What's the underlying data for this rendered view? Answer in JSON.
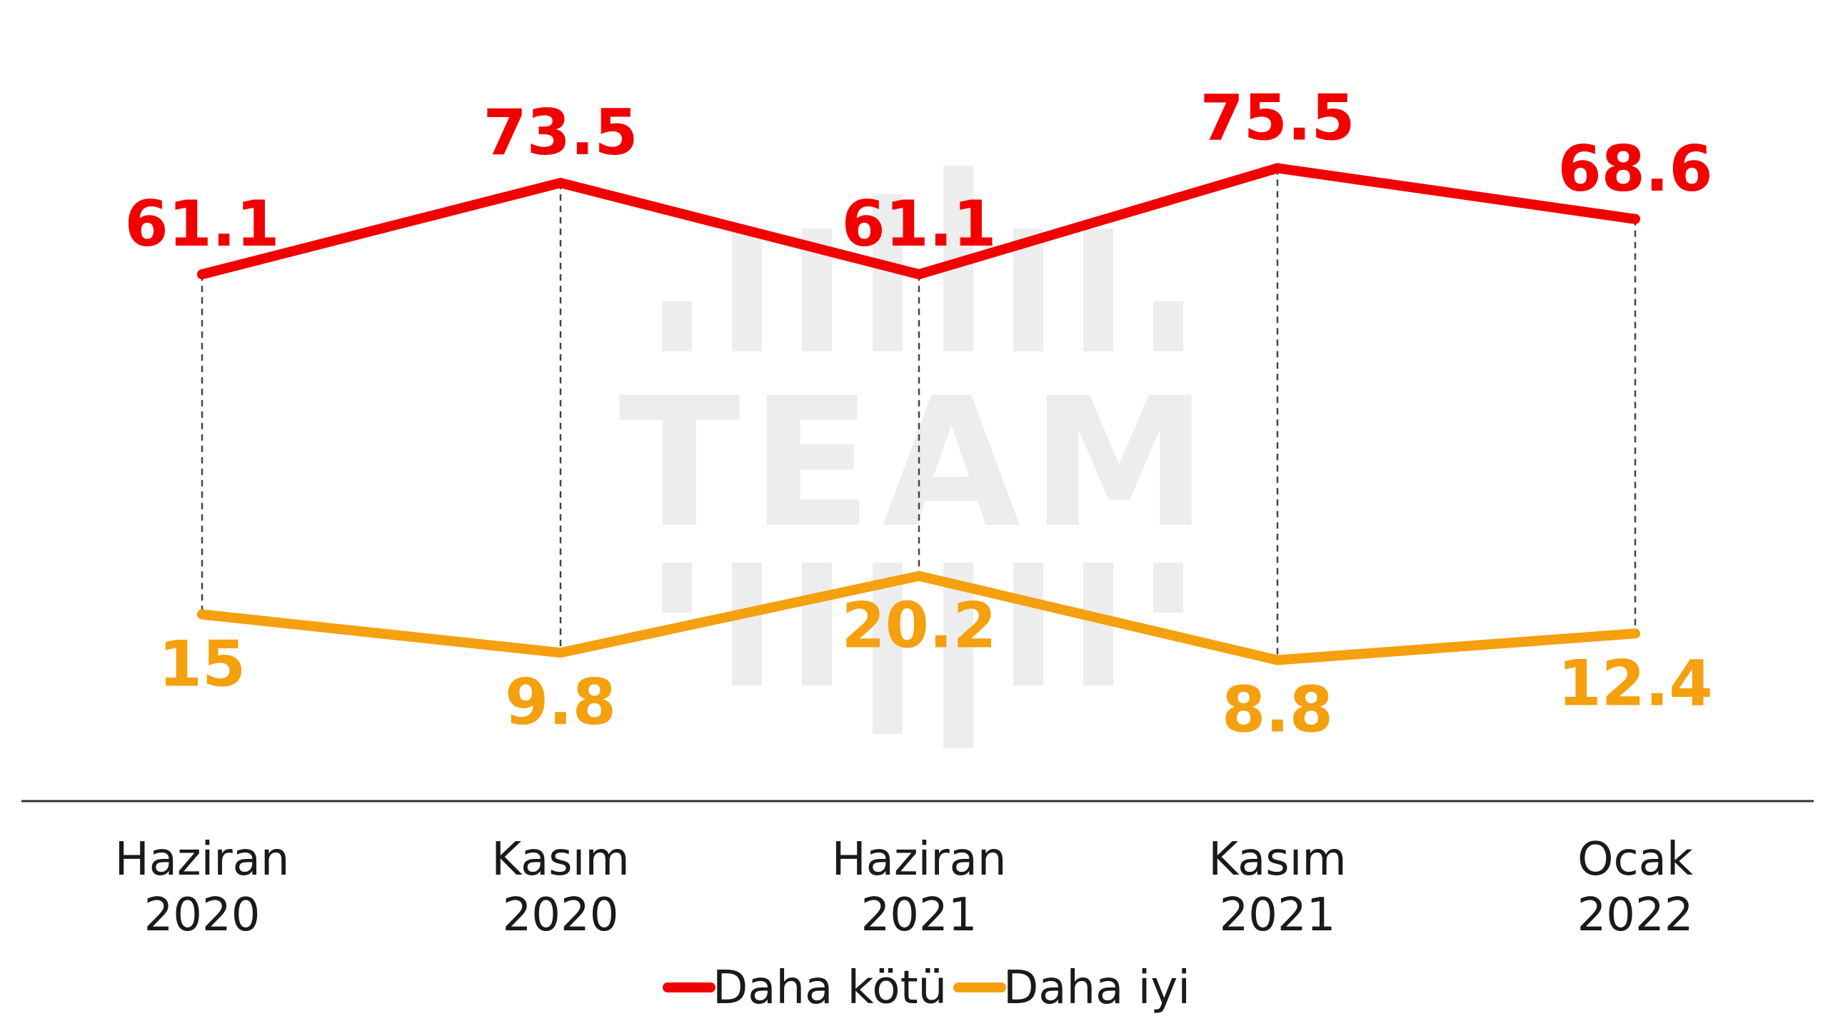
{
  "watermark": {
    "text": "TEAM"
  },
  "colors": {
    "worse": "#f20000",
    "better": "#f5a00f",
    "axis": "#333333",
    "guide": "#444444",
    "watermark": "#ededed"
  },
  "chart_data": {
    "type": "line",
    "title": "",
    "xlabel": "",
    "ylabel": "",
    "categories": [
      [
        "Haziran",
        "2020"
      ],
      [
        "Kasım",
        "2020"
      ],
      [
        "Haziran",
        "2021"
      ],
      [
        "Kasım",
        "2021"
      ],
      [
        "Ocak",
        "2022"
      ]
    ],
    "series": [
      {
        "name": "Daha kötü",
        "color": "#f20000",
        "values": [
          61.1,
          73.5,
          61.1,
          75.5,
          68.6
        ],
        "labels": [
          "61.1",
          "73.5",
          "61.1",
          "75.5",
          "68.6"
        ]
      },
      {
        "name": "Daha iyi",
        "color": "#f5a00f",
        "values": [
          15,
          9.8,
          20.2,
          8.8,
          12.4
        ],
        "labels": [
          "15",
          "9.8",
          "20.2",
          "8.8",
          "12.4"
        ]
      }
    ],
    "vertical_guides": "dashed",
    "legend_position": "bottom-center"
  }
}
